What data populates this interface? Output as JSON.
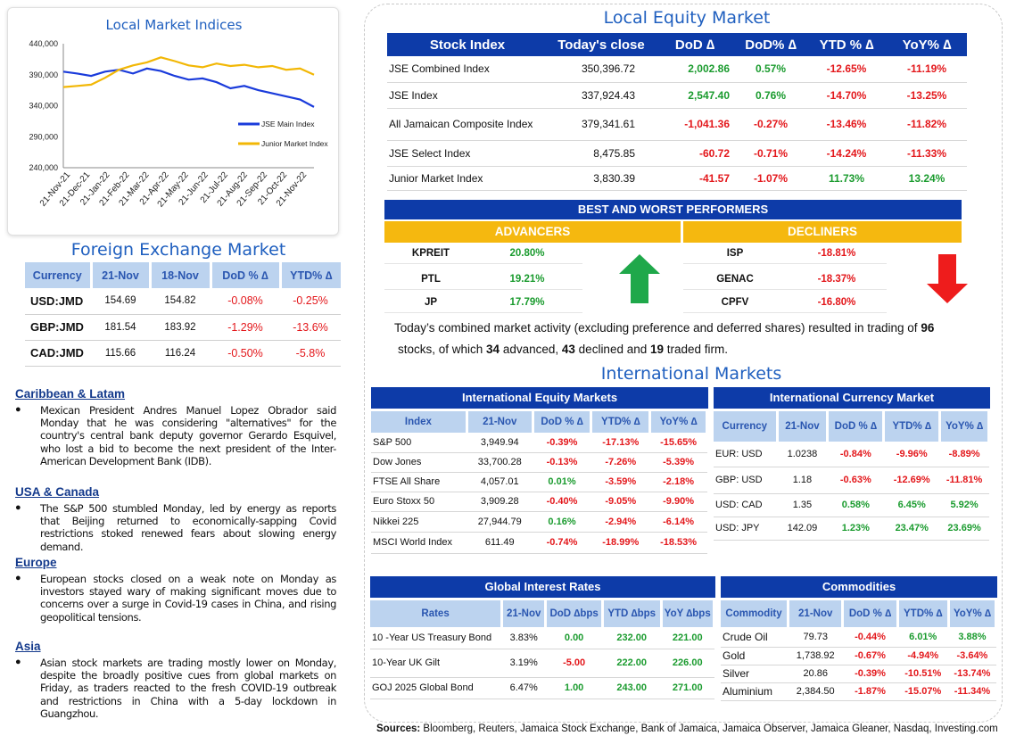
{
  "chart_data": {
    "type": "line",
    "title": "Local Market Indices",
    "x_ticks": [
      "21-Nov-21",
      "21-Dec-21",
      "21-Jan-22",
      "21-Feb-22",
      "21-Mar-22",
      "21-Apr-22",
      "21-May-22",
      "21-Jun-22",
      "21-Jul-22",
      "21-Aug-22",
      "21-Sep-22",
      "21-Oct-22",
      "21-Nov-22"
    ],
    "y_ticks": [
      "440,000",
      "390,000",
      "340,000",
      "290,000",
      "240,000"
    ],
    "ylim": [
      240000,
      440000
    ],
    "series": [
      {
        "name": "JSE Main Index",
        "color": "#1a3bdb",
        "values": [
          395000,
          392000,
          388000,
          395000,
          398000,
          392000,
          400000,
          396000,
          388000,
          382000,
          384000,
          378000,
          368000,
          372000,
          365000,
          360000,
          355000,
          350000,
          337924
        ]
      },
      {
        "name": "Junior Market Index",
        "color": "#f2b705",
        "values": [
          370000,
          372000,
          374000,
          385000,
          398000,
          405000,
          410000,
          418000,
          412000,
          405000,
          402000,
          408000,
          404000,
          406000,
          402000,
          404000,
          398000,
          400000,
          390000
        ]
      }
    ],
    "legend": "bottom-right"
  },
  "fx": {
    "title": "Foreign Exchange Market",
    "headers": [
      "Currency",
      "21-Nov",
      "18-Nov",
      "DoD % ∆",
      "YTD% ∆"
    ],
    "rows": [
      {
        "c": "USD:JMD",
        "a": "154.69",
        "b": "154.82",
        "d": "-0.08%",
        "y": "-0.25%"
      },
      {
        "c": "GBP:JMD",
        "a": "181.54",
        "b": "183.92",
        "d": "-1.29%",
        "y": "-13.6%"
      },
      {
        "c": "CAD:JMD",
        "a": "115.66",
        "b": "116.24",
        "d": "-0.50%",
        "y": "-5.8%"
      }
    ]
  },
  "news": [
    {
      "head": "Caribbean & Latam",
      "body": "Mexican President Andres Manuel Lopez Obrador said Monday that he was considering \"alternatives\" for the country's central bank deputy governor Gerardo Esquivel, who lost a bid to become the next president of the Inter-American Development Bank (IDB)."
    },
    {
      "head": "USA & Canada",
      "body": "The S&P 500 stumbled Monday, led by energy as reports that Beijing returned to economically-sapping Covid restrictions stoked renewed fears about slowing energy demand."
    },
    {
      "head": "Europe",
      "body": "European stocks closed on a weak note on Monday as investors stayed wary of making significant moves due to concerns over a surge in Covid-19 cases in China, and rising geopolitical tensions."
    },
    {
      "head": "Asia",
      "body": "Asian stock markets are trading mostly lower on Monday, despite the broadly positive cues from global markets on Friday, as traders reacted to the fresh COVID-19 outbreak and restrictions in China with a 5-day lockdown in Guangzhou."
    }
  ],
  "equity": {
    "title": "Local Equity Market",
    "headers": [
      "Stock Index",
      "Today's close",
      "DoD  ∆",
      "DoD% ∆",
      "YTD % ∆",
      "YoY% ∆"
    ],
    "rows": [
      {
        "n": "JSE Combined Index",
        "c": "350,396.72",
        "d": "2,002.86",
        "dp": "0.57%",
        "y": "-12.65%",
        "yy": "-11.19%"
      },
      {
        "n": "JSE Index",
        "c": "337,924.43",
        "d": "2,547.40",
        "dp": "0.76%",
        "y": "-14.70%",
        "yy": "-13.25%"
      },
      {
        "n": "All Jamaican Composite Index",
        "c": "379,341.61",
        "d": "-1,041.36",
        "dp": "-0.27%",
        "y": "-13.46%",
        "yy": "-11.82%"
      },
      {
        "n": "JSE Select Index",
        "c": "8,475.85",
        "d": "-60.72",
        "dp": "-0.71%",
        "y": "-14.24%",
        "yy": "-11.33%"
      },
      {
        "n": "Junior Market Index",
        "c": "3,830.39",
        "d": "-41.57",
        "dp": "-1.07%",
        "y": "11.73%",
        "yy": "13.24%"
      }
    ]
  },
  "performers": {
    "title": "BEST AND WORST PERFORMERS",
    "adv_label": "ADVANCERS",
    "dec_label": "DECLINERS",
    "advancers": [
      {
        "t": "KPREIT",
        "v": "20.80%"
      },
      {
        "t": "PTL",
        "v": "19.21%"
      },
      {
        "t": "JP",
        "v": "17.79%"
      }
    ],
    "decliners": [
      {
        "t": "ISP",
        "v": "-18.81%"
      },
      {
        "t": "GENAC",
        "v": "-18.37%"
      },
      {
        "t": "CPFV",
        "v": "-16.80%"
      }
    ]
  },
  "summary": {
    "p1": "Today’s combined market activity (excluding preference and deferred shares) resulted in trading of ",
    "total": "96",
    "p2": "stocks, of which ",
    "adv": "34",
    "p3": " advanced, ",
    "dec": "43",
    "p4": " declined and ",
    "firm": "19",
    "p5": " traded firm."
  },
  "intl_title": "International Markets",
  "intl_equity": {
    "title": "International Equity Markets",
    "headers": [
      "Index",
      "21-Nov",
      "DoD % ∆",
      "YTD% ∆",
      "YoY% ∆"
    ],
    "rows": [
      {
        "n": "S&P 500",
        "v": "3,949.94",
        "d": "-0.39%",
        "y": "-17.13%",
        "yy": "-15.65%"
      },
      {
        "n": "Dow Jones",
        "v": "33,700.28",
        "d": "-0.13%",
        "y": "-7.26%",
        "yy": "-5.39%"
      },
      {
        "n": "FTSE All Share",
        "v": "4,057.01",
        "d": "0.01%",
        "y": "-3.59%",
        "yy": "-2.18%"
      },
      {
        "n": "Euro Stoxx 50",
        "v": "3,909.28",
        "d": "-0.40%",
        "y": "-9.05%",
        "yy": "-9.90%"
      },
      {
        "n": "Nikkei 225",
        "v": "27,944.79",
        "d": "0.16%",
        "y": "-2.94%",
        "yy": "-6.14%"
      },
      {
        "n": "MSCI World Index",
        "v": "611.49",
        "d": "-0.74%",
        "y": "-18.99%",
        "yy": "-18.53%"
      }
    ]
  },
  "intl_currency": {
    "title": "International Currency Market",
    "headers": [
      "Currency",
      "21-Nov",
      "DoD % ∆",
      "YTD% ∆",
      "YoY% ∆"
    ],
    "rows": [
      {
        "n": "EUR: USD",
        "v": "1.0238",
        "d": "-0.84%",
        "y": "-9.96%",
        "yy": "-8.89%"
      },
      {
        "n": "GBP: USD",
        "v": "1.18",
        "d": "-0.63%",
        "y": "-12.69%",
        "yy": "-11.81%"
      },
      {
        "n": "USD: CAD",
        "v": "1.35",
        "d": "0.58%",
        "y": "6.45%",
        "yy": "5.92%"
      },
      {
        "n": "USD: JPY",
        "v": "142.09",
        "d": "1.23%",
        "y": "23.47%",
        "yy": "23.69%"
      }
    ]
  },
  "rates": {
    "title": "Global Interest Rates",
    "headers": [
      "Rates",
      "21-Nov",
      "DoD ∆bps",
      "YTD ∆bps",
      "YoY ∆bps"
    ],
    "rows": [
      {
        "n": "10 -Year US Treasury Bond",
        "v": "3.83%",
        "d": "0.00",
        "y": "232.00",
        "yy": "221.00"
      },
      {
        "n": "10-Year UK Gilt",
        "v": "3.19%",
        "d": "-5.00",
        "y": "222.00",
        "yy": "226.00"
      },
      {
        "n": "GOJ 2025 Global Bond",
        "v": "6.47%",
        "d": "1.00",
        "y": "243.00",
        "yy": "271.00"
      }
    ]
  },
  "commodities": {
    "title": "Commodities",
    "headers": [
      "Commodity",
      "21-Nov",
      "DoD % ∆",
      "YTD% ∆",
      "YoY% ∆"
    ],
    "rows": [
      {
        "n": "Crude Oil",
        "v": "79.73",
        "d": "-0.44%",
        "y": "6.01%",
        "yy": "3.88%"
      },
      {
        "n": "Gold",
        "v": "1,738.92",
        "d": "-0.67%",
        "y": "-4.94%",
        "yy": "-3.64%"
      },
      {
        "n": "Silver",
        "v": "20.86",
        "d": "-0.39%",
        "y": "-10.51%",
        "yy": "-13.74%"
      },
      {
        "n": "Aluminium",
        "v": "2,384.50",
        "d": "-1.87%",
        "y": "-15.07%",
        "yy": "-11.34%"
      }
    ]
  },
  "sources": {
    "label": "Sources:",
    "text": " Bloomberg, Reuters, Jamaica Stock Exchange, Bank of Jamaica, Jamaica Observer, Jamaica Gleaner, Nasdaq, Investing.com"
  }
}
